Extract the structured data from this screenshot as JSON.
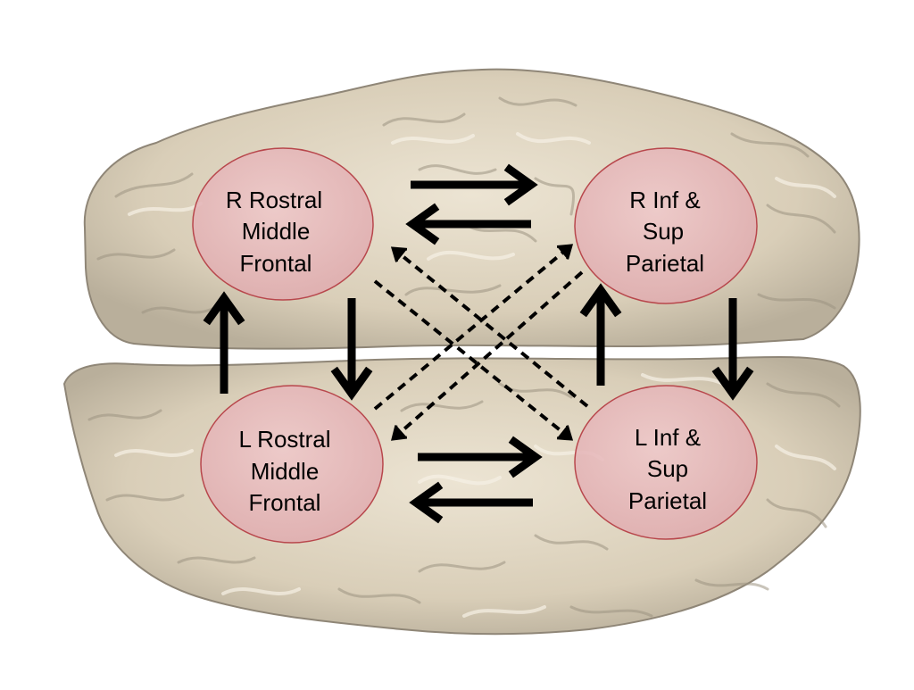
{
  "colors": {
    "background": "#ffffff",
    "brain_fill": "#ddd3bf",
    "brain_shadow": "#a39b8a",
    "brain_light": "#f4efe4",
    "node_fill": "#e9bcbf",
    "node_stroke": "#b8474c",
    "arrow": "#000000",
    "label": "#000000"
  },
  "nodes": {
    "r_rostral": {
      "lines": [
        "R Rostral",
        "Middle",
        "Frontal"
      ]
    },
    "r_parietal": {
      "lines": [
        "R Inf &",
        "Sup",
        "Parietal"
      ]
    },
    "l_rostral": {
      "lines": [
        "L Rostral",
        "Middle",
        "Frontal"
      ]
    },
    "l_parietal": {
      "lines": [
        "L Inf &",
        "Sup",
        "Parietal"
      ]
    }
  },
  "connections": [
    {
      "from": "r_rostral",
      "to": "r_parietal",
      "style": "solid"
    },
    {
      "from": "r_parietal",
      "to": "r_rostral",
      "style": "solid"
    },
    {
      "from": "l_rostral",
      "to": "l_parietal",
      "style": "solid"
    },
    {
      "from": "l_parietal",
      "to": "l_rostral",
      "style": "solid"
    },
    {
      "from": "r_rostral",
      "to": "l_rostral",
      "style": "solid"
    },
    {
      "from": "l_rostral",
      "to": "r_rostral",
      "style": "solid"
    },
    {
      "from": "r_parietal",
      "to": "l_parietal",
      "style": "solid"
    },
    {
      "from": "l_parietal",
      "to": "r_parietal",
      "style": "solid"
    },
    {
      "from": "r_rostral",
      "to": "l_parietal",
      "style": "dashed"
    },
    {
      "from": "l_parietal",
      "to": "r_rostral",
      "style": "dashed"
    },
    {
      "from": "l_rostral",
      "to": "r_parietal",
      "style": "dashed"
    },
    {
      "from": "r_parietal",
      "to": "l_rostral",
      "style": "dashed"
    }
  ]
}
